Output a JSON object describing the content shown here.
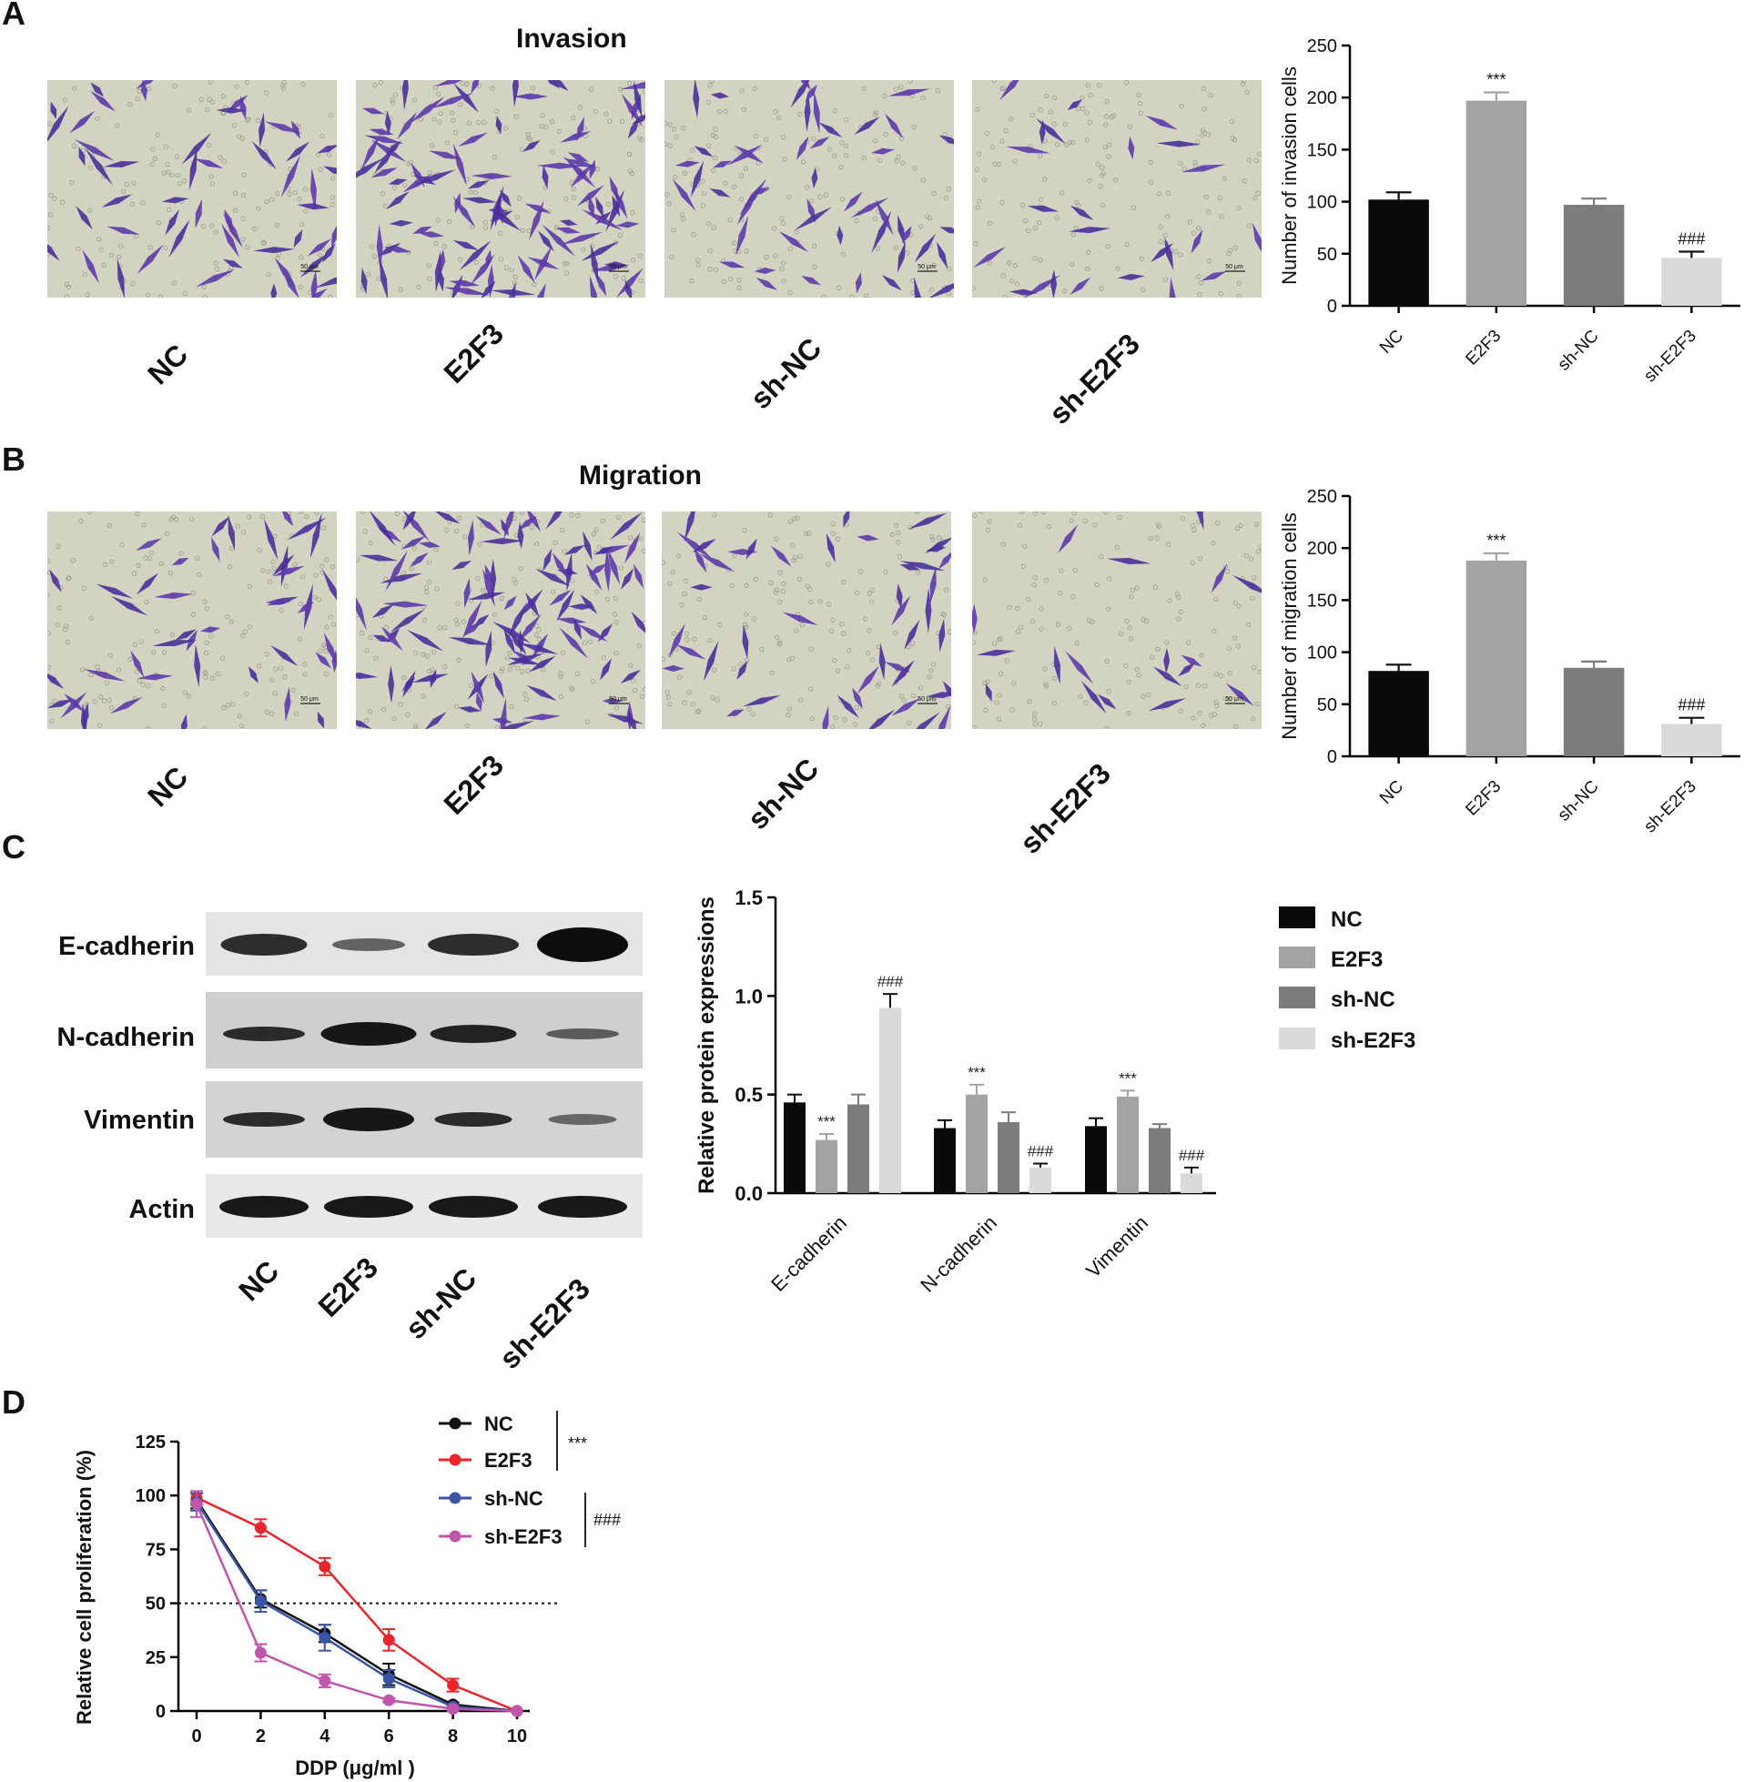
{
  "panels": {
    "A": {
      "letter": "A",
      "title": "Invasion",
      "scale_bar": "50 μm",
      "image_labels": [
        "NC",
        "E2F3",
        "sh-NC",
        "sh-E2F3"
      ]
    },
    "B": {
      "letter": "B",
      "title": "Migration",
      "scale_bar": "50 μm",
      "image_labels": [
        "NC",
        "E2F3",
        "sh-NC",
        "sh-E2F3"
      ]
    },
    "C": {
      "letter": "C",
      "blot_rows": [
        "E-cadherin",
        "N-cadherin",
        "Vimentin",
        "Actin"
      ],
      "blot_lanes": [
        "NC",
        "E2F3",
        "sh-NC",
        "sh-E2F3"
      ]
    },
    "D": {
      "letter": "D"
    }
  },
  "colors": {
    "NC": "#0a0a0a",
    "E2F3": "#a3a3a6",
    "sh-NC": "#7b7c7c",
    "sh-E2F3": "#d9dbd8",
    "line_NC": "#111111",
    "line_E2F3": "#e8262b",
    "line_sh-NC": "#3a55a5",
    "line_sh-E2F3": "#c056ac"
  },
  "chart_data": [
    {
      "id": "A-bar",
      "type": "bar",
      "categories": [
        "NC",
        "E2F3",
        "sh-NC",
        "sh-E2F3"
      ],
      "values": [
        102,
        197,
        97,
        46
      ],
      "errors": [
        7,
        8,
        6,
        6
      ],
      "annotations": [
        "",
        "***",
        "",
        "###"
      ],
      "ylabel": "Number of invasion cells",
      "ylim": [
        0,
        250
      ],
      "yticks": [
        0,
        50,
        100,
        150,
        200,
        250
      ]
    },
    {
      "id": "B-bar",
      "type": "bar",
      "categories": [
        "NC",
        "E2F3",
        "sh-NC",
        "sh-E2F3"
      ],
      "values": [
        82,
        188,
        85,
        31
      ],
      "errors": [
        6,
        7,
        6,
        6
      ],
      "annotations": [
        "",
        "***",
        "",
        "###"
      ],
      "ylabel": "Number of migration cells",
      "ylim": [
        0,
        250
      ],
      "yticks": [
        0,
        50,
        100,
        150,
        200,
        250
      ]
    },
    {
      "id": "C-bar",
      "type": "bar",
      "categories": [
        "E-cadherin",
        "N-cadherin",
        "Vimentin"
      ],
      "series": [
        {
          "name": "NC",
          "values": [
            0.46,
            0.33,
            0.34
          ],
          "errors": [
            0.04,
            0.04,
            0.04
          ],
          "annotations": [
            "",
            "",
            ""
          ]
        },
        {
          "name": "E2F3",
          "values": [
            0.27,
            0.5,
            0.49
          ],
          "errors": [
            0.03,
            0.05,
            0.03
          ],
          "annotations": [
            "***",
            "***",
            "***"
          ]
        },
        {
          "name": "sh-NC",
          "values": [
            0.45,
            0.36,
            0.33
          ],
          "errors": [
            0.05,
            0.05,
            0.02
          ],
          "annotations": [
            "",
            "",
            ""
          ]
        },
        {
          "name": "sh-E2F3",
          "values": [
            0.94,
            0.13,
            0.1
          ],
          "errors": [
            0.07,
            0.02,
            0.03
          ],
          "annotations": [
            "###",
            "###",
            "###"
          ]
        }
      ],
      "ylabel": "Relative protein expressions",
      "ylim": [
        0,
        1.5
      ],
      "yticks": [
        "0.0",
        "0.5",
        "1.0",
        "1.5"
      ],
      "legend_position": "right"
    },
    {
      "id": "D-line",
      "type": "line",
      "x": [
        0,
        2,
        4,
        6,
        8,
        10
      ],
      "series": [
        {
          "name": "NC",
          "values": [
            98,
            52,
            36,
            17,
            3,
            0
          ],
          "errors": [
            4,
            4,
            4,
            5,
            1,
            0
          ]
        },
        {
          "name": "E2F3",
          "values": [
            99,
            85,
            67,
            33,
            12,
            0
          ],
          "errors": [
            3,
            4,
            4,
            5,
            3,
            0
          ]
        },
        {
          "name": "sh-NC",
          "values": [
            97,
            51,
            34,
            15,
            2,
            0
          ],
          "errors": [
            4,
            5,
            6,
            4,
            1,
            0
          ]
        },
        {
          "name": "sh-E2F3",
          "values": [
            96,
            27,
            14,
            5,
            1,
            0
          ],
          "errors": [
            6,
            4,
            3,
            1,
            1,
            0
          ]
        }
      ],
      "reference_line": 50,
      "xlabel": "DDP (μg/ml )",
      "ylabel": "Relative cell proliferation (%)",
      "xlim": [
        0,
        10
      ],
      "ylim": [
        0,
        125
      ],
      "xticks": [
        0,
        2,
        4,
        6,
        8,
        10
      ],
      "yticks": [
        0,
        25,
        50,
        75,
        100,
        125
      ],
      "significance": [
        {
          "label": "***",
          "groups": [
            "NC",
            "E2F3"
          ]
        },
        {
          "label": "###",
          "groups": [
            "sh-NC",
            "sh-E2F3"
          ]
        }
      ],
      "legend_position": "top-right"
    }
  ]
}
